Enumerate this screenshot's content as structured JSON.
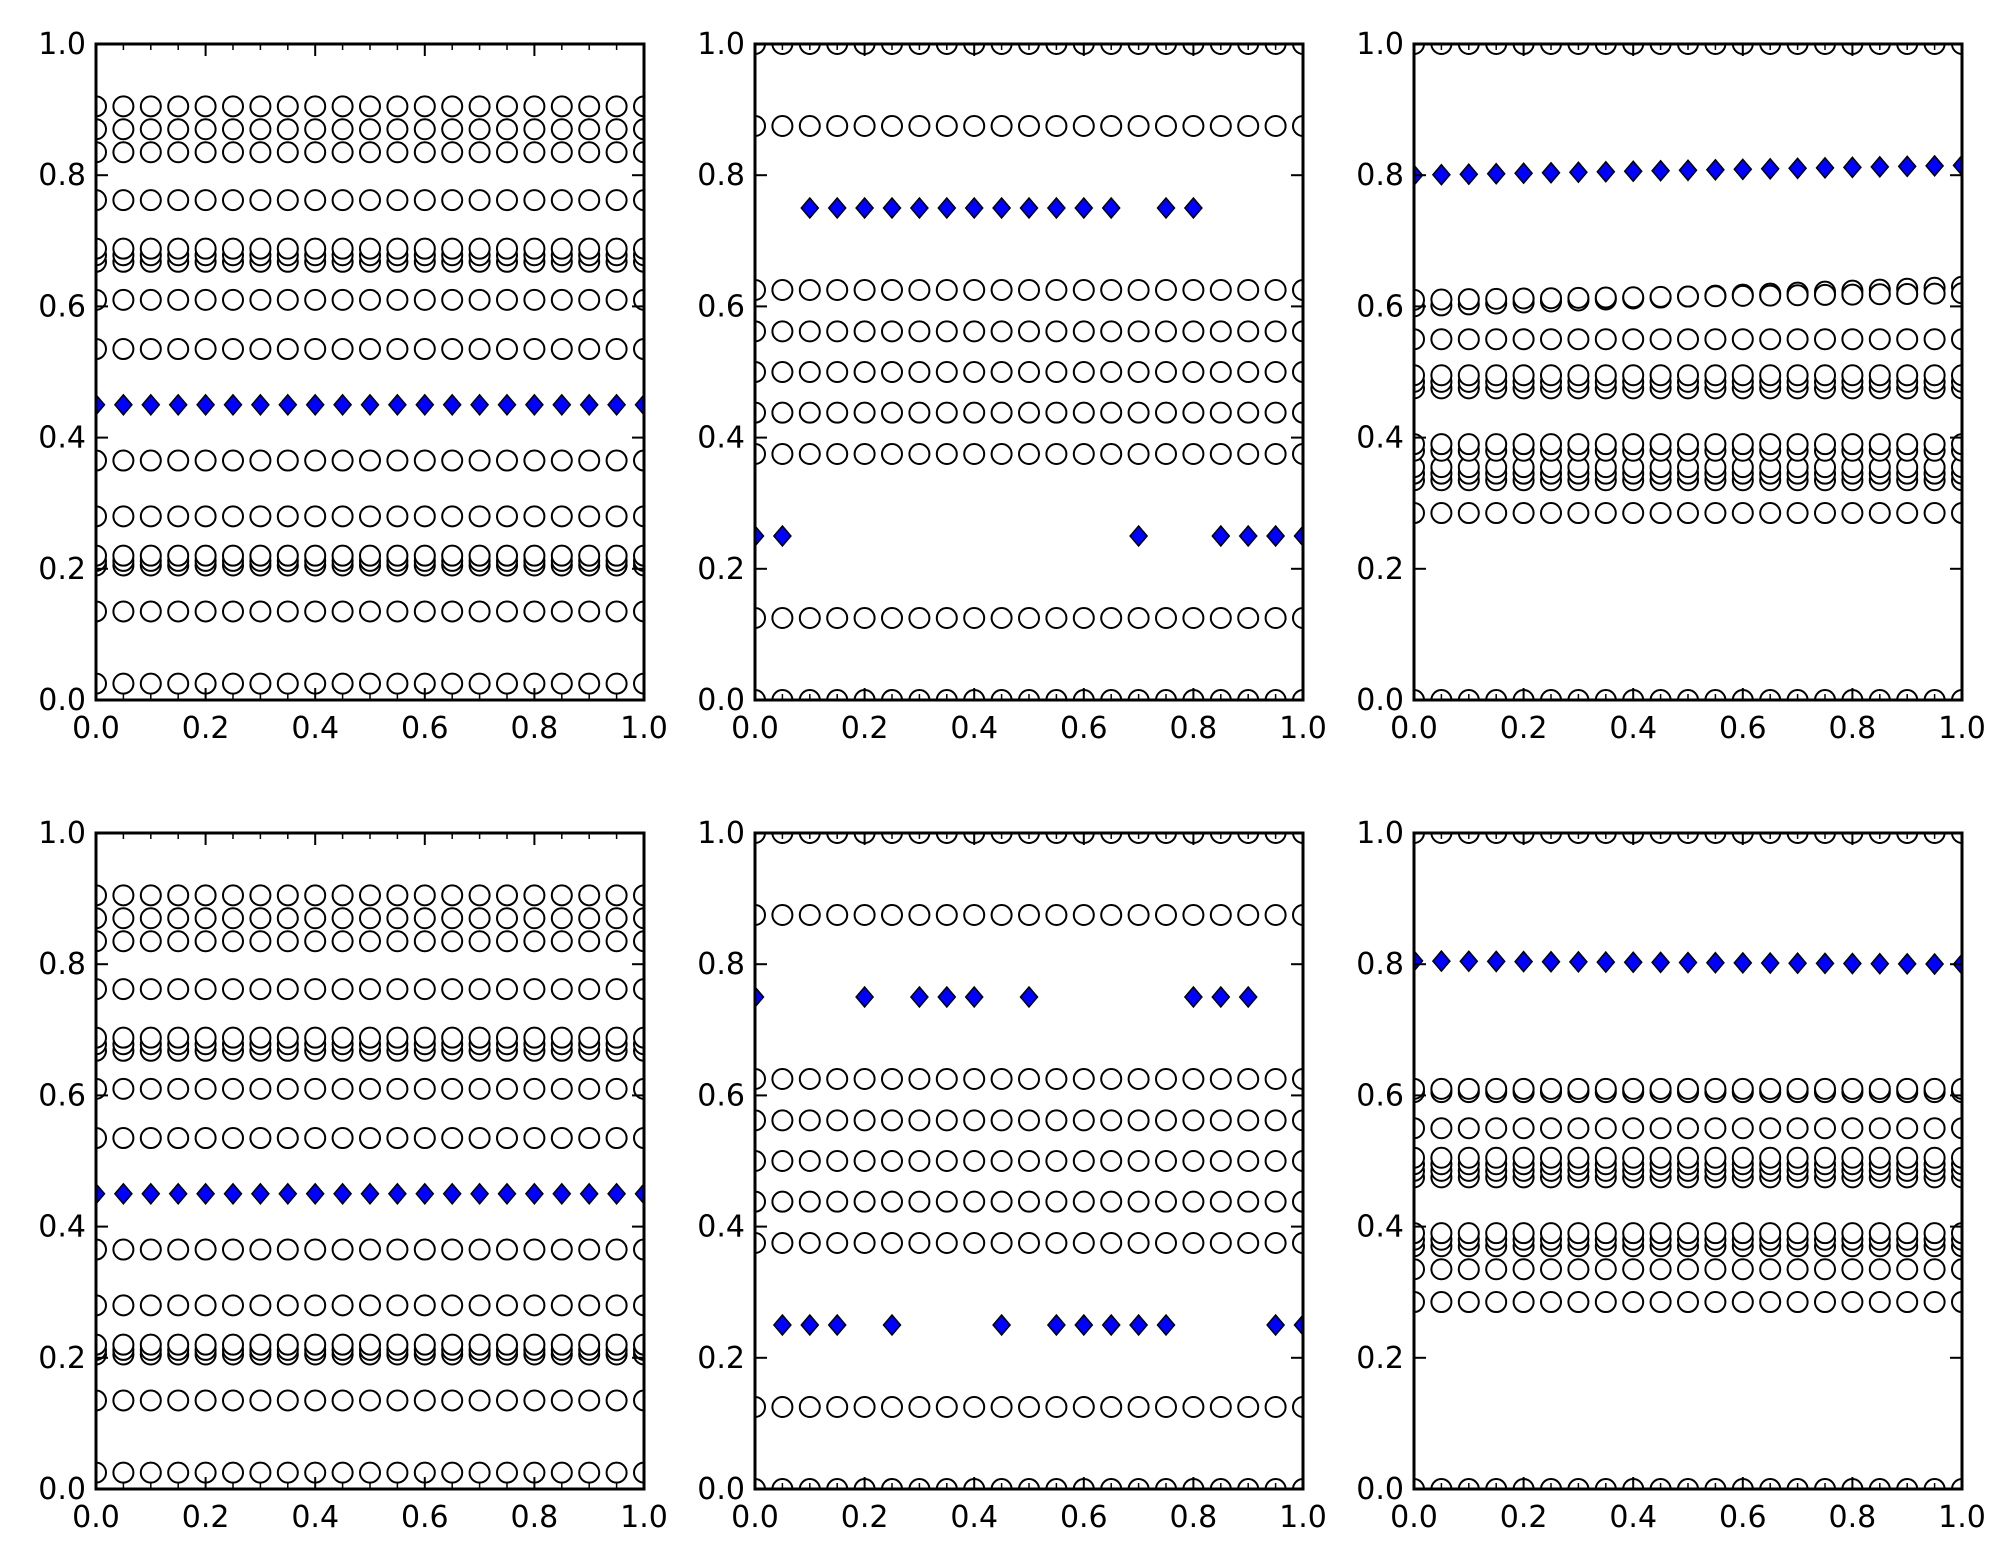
{
  "colors": {
    "frame": "#000000",
    "open_marker_edge": "#000000",
    "open_marker_fill": "#ffffff",
    "highlight_fill": "#0000ff",
    "highlight_edge": "#000000",
    "background": "#ffffff"
  },
  "chart_data": [
    {
      "type": "scatter",
      "panel": "row 1, column 1",
      "xlim": [
        0.0,
        1.0
      ],
      "ylim": [
        0.0,
        1.0
      ],
      "xticks": [
        "0.0",
        "0.2",
        "0.4",
        "0.6",
        "0.8",
        "1.0"
      ],
      "yticks": [
        "0.0",
        "0.2",
        "0.4",
        "0.6",
        "0.8",
        "1.0"
      ],
      "x": [
        0.0,
        0.05,
        0.1,
        0.15,
        0.2,
        0.25,
        0.3,
        0.35,
        0.4,
        0.45,
        0.5,
        0.55,
        0.6,
        0.65,
        0.7,
        0.75,
        0.8,
        0.85,
        0.9,
        0.95,
        1.0
      ],
      "series": [
        {
          "name": "open circles",
          "marker": "circle",
          "filled": false,
          "levels": [
            0.025,
            0.135,
            0.205,
            0.212,
            0.22,
            0.28,
            0.365,
            0.535,
            0.61,
            0.668,
            0.678,
            0.688,
            0.762,
            0.835,
            0.87,
            0.905
          ]
        },
        {
          "name": "highlighted",
          "marker": "diamond",
          "filled": true,
          "level": 0.45
        }
      ]
    },
    {
      "type": "scatter",
      "panel": "row 1, column 2",
      "xlim": [
        0.0,
        1.0
      ],
      "ylim": [
        0.0,
        1.0
      ],
      "xticks": [
        "0.0",
        "0.2",
        "0.4",
        "0.6",
        "0.8",
        "1.0"
      ],
      "yticks": [
        "0.0",
        "0.2",
        "0.4",
        "0.6",
        "0.8",
        "1.0"
      ],
      "x": [
        0.0,
        0.05,
        0.1,
        0.15,
        0.2,
        0.25,
        0.3,
        0.35,
        0.4,
        0.45,
        0.5,
        0.55,
        0.6,
        0.65,
        0.7,
        0.75,
        0.8,
        0.85,
        0.9,
        0.95,
        1.0
      ],
      "series": [
        {
          "name": "open circles",
          "marker": "circle",
          "filled": false,
          "levels": [
            0.0,
            0.125,
            0.375,
            0.438,
            0.5,
            0.562,
            0.625,
            0.875,
            1.0
          ]
        },
        {
          "name": "highlighted",
          "marker": "diamond",
          "filled": true,
          "points": [
            [
              0.0,
              0.25
            ],
            [
              0.05,
              0.25
            ],
            [
              0.1,
              0.75
            ],
            [
              0.15,
              0.75
            ],
            [
              0.2,
              0.75
            ],
            [
              0.25,
              0.75
            ],
            [
              0.3,
              0.75
            ],
            [
              0.35,
              0.75
            ],
            [
              0.4,
              0.75
            ],
            [
              0.45,
              0.75
            ],
            [
              0.5,
              0.75
            ],
            [
              0.55,
              0.75
            ],
            [
              0.6,
              0.75
            ],
            [
              0.65,
              0.75
            ],
            [
              0.7,
              0.25
            ],
            [
              0.75,
              0.75
            ],
            [
              0.8,
              0.75
            ],
            [
              0.85,
              0.25
            ],
            [
              0.9,
              0.25
            ],
            [
              0.95,
              0.25
            ],
            [
              1.0,
              0.25
            ]
          ]
        }
      ]
    },
    {
      "type": "scatter",
      "panel": "row 1, column 3",
      "xlim": [
        0.0,
        1.0
      ],
      "ylim": [
        0.0,
        1.0
      ],
      "xticks": [
        "0.0",
        "0.2",
        "0.4",
        "0.6",
        "0.8",
        "1.0"
      ],
      "yticks": [
        "0.0",
        "0.2",
        "0.4",
        "0.6",
        "0.8",
        "1.0"
      ],
      "x": [
        0.0,
        0.05,
        0.1,
        0.15,
        0.2,
        0.25,
        0.3,
        0.35,
        0.4,
        0.45,
        0.5,
        0.55,
        0.6,
        0.65,
        0.7,
        0.75,
        0.8,
        0.85,
        0.9,
        0.95,
        1.0
      ],
      "series": [
        {
          "name": "open circles",
          "marker": "circle",
          "filled": false,
          "levels": [
            0.0,
            0.285,
            0.335,
            0.345,
            0.355,
            0.38,
            0.39,
            0.475,
            0.485,
            0.495,
            0.55,
            1.0
          ],
          "sloped": [
            {
              "from": 0.6,
              "to": 0.63
            },
            {
              "from": 0.61,
              "to": 0.62
            }
          ]
        },
        {
          "name": "highlighted",
          "marker": "diamond",
          "filled": true,
          "from": 0.8,
          "to": 0.815
        }
      ]
    },
    {
      "type": "scatter",
      "panel": "row 2, column 1",
      "xlim": [
        0.0,
        1.0
      ],
      "ylim": [
        0.0,
        1.0
      ],
      "xticks": [
        "0.0",
        "0.2",
        "0.4",
        "0.6",
        "0.8",
        "1.0"
      ],
      "yticks": [
        "0.0",
        "0.2",
        "0.4",
        "0.6",
        "0.8",
        "1.0"
      ],
      "x": [
        0.0,
        0.05,
        0.1,
        0.15,
        0.2,
        0.25,
        0.3,
        0.35,
        0.4,
        0.45,
        0.5,
        0.55,
        0.6,
        0.65,
        0.7,
        0.75,
        0.8,
        0.85,
        0.9,
        0.95,
        1.0
      ],
      "series": [
        {
          "name": "open circles",
          "marker": "circle",
          "filled": false,
          "levels": [
            0.025,
            0.135,
            0.205,
            0.212,
            0.22,
            0.28,
            0.365,
            0.535,
            0.61,
            0.668,
            0.678,
            0.688,
            0.762,
            0.835,
            0.87,
            0.905
          ]
        },
        {
          "name": "highlighted",
          "marker": "diamond",
          "filled": true,
          "level": 0.45
        }
      ]
    },
    {
      "type": "scatter",
      "panel": "row 2, column 2",
      "xlim": [
        0.0,
        1.0
      ],
      "ylim": [
        0.0,
        1.0
      ],
      "xticks": [
        "0.0",
        "0.2",
        "0.4",
        "0.6",
        "0.8",
        "1.0"
      ],
      "yticks": [
        "0.0",
        "0.2",
        "0.4",
        "0.6",
        "0.8",
        "1.0"
      ],
      "x": [
        0.0,
        0.05,
        0.1,
        0.15,
        0.2,
        0.25,
        0.3,
        0.35,
        0.4,
        0.45,
        0.5,
        0.55,
        0.6,
        0.65,
        0.7,
        0.75,
        0.8,
        0.85,
        0.9,
        0.95,
        1.0
      ],
      "series": [
        {
          "name": "open circles",
          "marker": "circle",
          "filled": false,
          "levels": [
            0.0,
            0.125,
            0.375,
            0.438,
            0.5,
            0.562,
            0.625,
            0.875,
            1.0
          ]
        },
        {
          "name": "highlighted",
          "marker": "diamond",
          "filled": true,
          "points": [
            [
              0.0,
              0.75
            ],
            [
              0.05,
              0.25
            ],
            [
              0.1,
              0.25
            ],
            [
              0.15,
              0.25
            ],
            [
              0.2,
              0.75
            ],
            [
              0.25,
              0.25
            ],
            [
              0.3,
              0.75
            ],
            [
              0.35,
              0.75
            ],
            [
              0.4,
              0.75
            ],
            [
              0.45,
              0.25
            ],
            [
              0.5,
              0.75
            ],
            [
              0.55,
              0.25
            ],
            [
              0.6,
              0.25
            ],
            [
              0.65,
              0.25
            ],
            [
              0.7,
              0.25
            ],
            [
              0.75,
              0.25
            ],
            [
              0.8,
              0.75
            ],
            [
              0.85,
              0.75
            ],
            [
              0.9,
              0.75
            ],
            [
              0.95,
              0.25
            ],
            [
              1.0,
              0.25
            ]
          ]
        }
      ]
    },
    {
      "type": "scatter",
      "panel": "row 2, column 3",
      "xlim": [
        0.0,
        1.0
      ],
      "ylim": [
        0.0,
        1.0
      ],
      "xticks": [
        "0.0",
        "0.2",
        "0.4",
        "0.6",
        "0.8",
        "1.0"
      ],
      "yticks": [
        "0.0",
        "0.2",
        "0.4",
        "0.6",
        "0.8",
        "1.0"
      ],
      "x": [
        0.0,
        0.05,
        0.1,
        0.15,
        0.2,
        0.25,
        0.3,
        0.35,
        0.4,
        0.45,
        0.5,
        0.55,
        0.6,
        0.65,
        0.7,
        0.75,
        0.8,
        0.85,
        0.9,
        0.95,
        1.0
      ],
      "series": [
        {
          "name": "open circles",
          "marker": "circle",
          "filled": false,
          "levels": [
            0.0,
            0.285,
            0.335,
            0.37,
            0.38,
            0.39,
            0.475,
            0.485,
            0.495,
            0.505,
            0.55,
            0.605,
            0.61,
            1.0
          ]
        },
        {
          "name": "highlighted",
          "marker": "diamond",
          "filled": true,
          "from": 0.805,
          "to": 0.8
        }
      ]
    }
  ]
}
